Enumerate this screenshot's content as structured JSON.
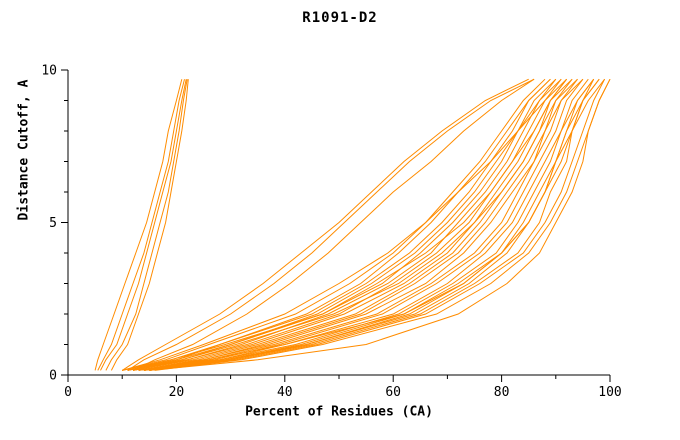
{
  "chart_data": {
    "type": "line",
    "title": "R1091-D2",
    "xlabel": "Percent of Residues (CA)",
    "ylabel": "Distance Cutoff, A",
    "xlim": [
      0,
      100
    ],
    "ylim": [
      0,
      10
    ],
    "x_ticks": [
      0,
      20,
      40,
      60,
      80,
      100
    ],
    "y_ticks": [
      0,
      5,
      10
    ],
    "x_minor_step": 10,
    "y_minor_step": 1,
    "grid": false,
    "legend": "none",
    "line_color": "#ff8c00",
    "axis_color": "#000000",
    "background": "#ffffff",
    "y_samples": [
      0.15,
      0.5,
      1,
      2,
      3,
      4,
      5,
      6,
      7,
      8,
      9,
      9.7
    ],
    "series_x": [
      [
        5,
        5.5,
        6.5,
        8.5,
        10.5,
        12.5,
        14.5,
        16,
        17.5,
        18.5,
        20,
        21
      ],
      [
        5.5,
        6.5,
        8,
        10,
        12,
        14,
        15.5,
        17,
        18.5,
        19.5,
        20.5,
        21.5
      ],
      [
        6,
        7,
        9,
        11,
        13,
        14.5,
        16,
        17.5,
        19,
        20,
        21,
        21.8
      ],
      [
        7,
        8,
        10,
        12.5,
        14,
        15.5,
        17,
        18.5,
        19.5,
        20.5,
        21.3,
        22
      ],
      [
        8,
        9,
        11,
        13,
        15,
        16.5,
        18,
        19,
        20,
        21,
        21.8,
        22.2
      ],
      [
        11,
        14,
        20,
        30,
        38,
        45,
        51,
        57,
        63,
        70,
        78,
        86
      ],
      [
        12,
        16,
        23,
        33,
        41,
        48,
        54,
        60,
        67,
        73,
        80,
        86
      ],
      [
        10,
        13,
        18,
        28,
        36,
        43,
        50,
        56,
        62,
        69,
        77,
        85
      ],
      [
        10,
        18,
        26,
        42,
        52,
        60,
        66,
        71,
        76,
        80,
        84,
        88
      ],
      [
        10,
        19,
        28,
        44,
        54,
        61,
        67,
        72,
        77,
        81,
        85,
        89
      ],
      [
        11,
        20,
        28,
        45,
        55,
        63,
        69,
        74,
        78,
        82,
        85,
        89
      ],
      [
        11,
        20,
        30,
        46,
        56,
        64,
        70,
        75,
        79,
        83,
        86,
        90
      ],
      [
        11,
        21,
        30,
        47,
        58,
        65,
        71,
        76,
        80,
        83,
        87,
        90
      ],
      [
        12,
        22,
        32,
        48,
        59,
        67,
        72,
        77,
        81,
        84,
        87,
        91
      ],
      [
        12,
        22,
        33,
        50,
        60,
        68,
        74,
        78,
        82,
        85,
        88,
        91
      ],
      [
        12,
        23,
        34,
        51,
        62,
        70,
        75,
        79,
        83,
        86,
        89,
        92
      ],
      [
        13,
        24,
        35,
        53,
        63,
        71,
        76,
        80,
        84,
        87,
        89,
        93
      ],
      [
        13,
        25,
        36,
        54,
        64,
        72,
        77,
        81,
        85,
        88,
        90,
        93
      ],
      [
        13,
        25,
        37,
        55,
        66,
        73,
        78,
        82,
        86,
        88,
        91,
        94
      ],
      [
        14,
        26,
        38,
        57,
        67,
        75,
        80,
        83,
        86,
        89,
        91,
        95
      ],
      [
        14,
        27,
        39,
        58,
        68,
        76,
        81,
        84,
        87,
        90,
        92,
        95
      ],
      [
        14,
        28,
        40,
        60,
        70,
        77,
        82,
        85,
        88,
        91,
        93,
        96
      ],
      [
        14,
        28,
        42,
        61,
        71,
        79,
        83,
        86,
        89,
        91,
        94,
        97
      ],
      [
        15,
        29,
        43,
        62,
        72,
        80,
        84,
        87,
        90,
        92,
        94,
        97
      ],
      [
        15,
        30,
        44,
        64,
        74,
        81,
        85,
        88,
        91,
        93,
        95,
        98
      ],
      [
        15,
        30,
        45,
        65,
        75,
        83,
        87,
        89,
        92,
        93,
        96,
        99
      ],
      [
        15,
        31,
        46,
        66,
        76,
        84,
        88,
        91,
        93,
        95,
        97,
        99
      ],
      [
        16,
        32,
        47,
        68,
        78,
        85,
        89,
        92,
        94,
        96,
        98,
        100
      ],
      [
        15,
        35,
        55,
        72,
        81,
        87,
        90,
        93,
        95,
        96,
        98,
        100
      ],
      [
        13,
        26,
        40,
        62,
        73,
        80,
        85,
        88,
        90,
        92,
        95,
        98
      ],
      [
        12,
        21,
        31,
        49,
        61,
        69,
        75,
        80,
        84,
        87,
        90,
        94
      ],
      [
        11,
        19,
        29,
        47,
        57,
        66,
        73,
        78,
        82,
        86,
        89,
        92
      ],
      [
        14,
        29,
        44,
        63,
        73,
        80,
        85,
        88,
        90,
        93,
        95,
        97
      ],
      [
        10,
        17,
        25,
        40,
        50,
        59,
        66,
        72,
        78,
        83,
        88,
        92
      ]
    ]
  }
}
